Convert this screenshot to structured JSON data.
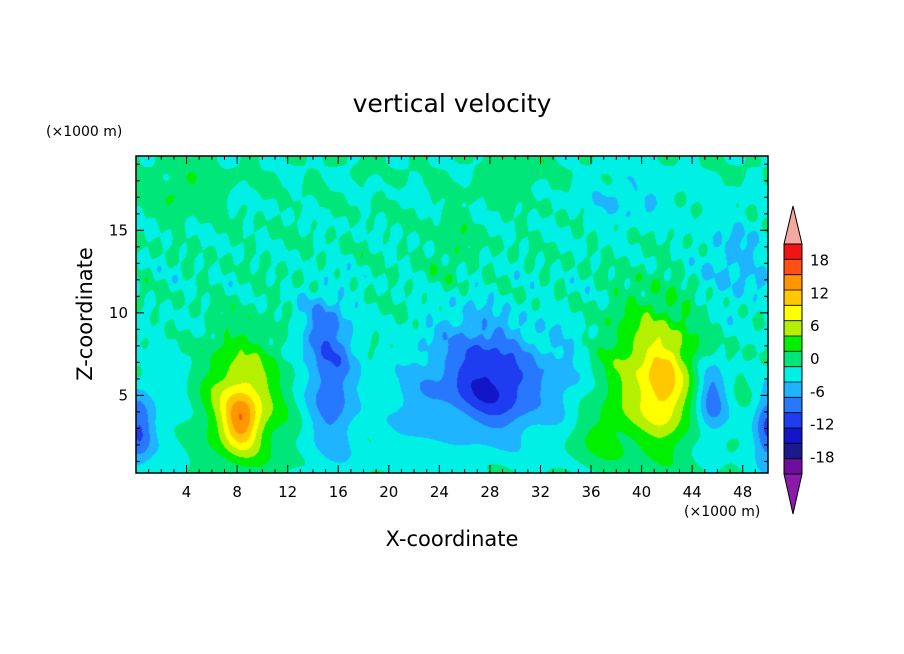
{
  "chart_data": {
    "type": "heatmap",
    "title": "vertical velocity",
    "xlabel": "X-coordinate",
    "ylabel": "Z-coordinate",
    "x_unit": "(×1000 m)",
    "y_unit": "(×1000 m)",
    "xlim": [
      0,
      50
    ],
    "ylim": [
      0.3,
      19.5
    ],
    "x_ticks": [
      4,
      8,
      12,
      16,
      20,
      24,
      28,
      32,
      36,
      40,
      44,
      48
    ],
    "y_ticks": [
      5,
      10,
      15
    ],
    "grid": false,
    "colorbar": {
      "placement": "right",
      "labels": [
        "18",
        "12",
        "6",
        "0",
        "-6",
        "-12",
        "-18"
      ],
      "label_values": [
        18,
        12,
        6,
        0,
        -6,
        -12,
        -18
      ],
      "min": -21,
      "max": 21,
      "levels": [
        -21,
        -18,
        -15,
        -12,
        -9,
        -6,
        -3,
        0,
        3,
        6,
        9,
        12,
        15,
        18,
        21
      ],
      "colors": [
        "#6e0d9e",
        "#1b1a8c",
        "#1414c8",
        "#1e3cf0",
        "#2878ff",
        "#1eb4ff",
        "#00f0e6",
        "#00e678",
        "#00f000",
        "#b4f000",
        "#ffff00",
        "#ffc800",
        "#ff9600",
        "#ff5014",
        "#f01414"
      ],
      "under_color": "#8a1aa8",
      "over_color": "#f5a8a0"
    },
    "field_features": [
      {
        "x": 8.3,
        "z": 3.8,
        "value": 19
      },
      {
        "x": 41.5,
        "z": 5.8,
        "value": 15
      },
      {
        "x": 28,
        "z": 5.5,
        "value": -13
      },
      {
        "x": 15.5,
        "z": 5.5,
        "value": -10
      },
      {
        "x": 45.5,
        "z": 5.0,
        "value": -9
      },
      {
        "x": 0.3,
        "z": 2.8,
        "value": -9
      },
      {
        "x": 49.8,
        "z": 3.0,
        "value": -10
      }
    ]
  }
}
